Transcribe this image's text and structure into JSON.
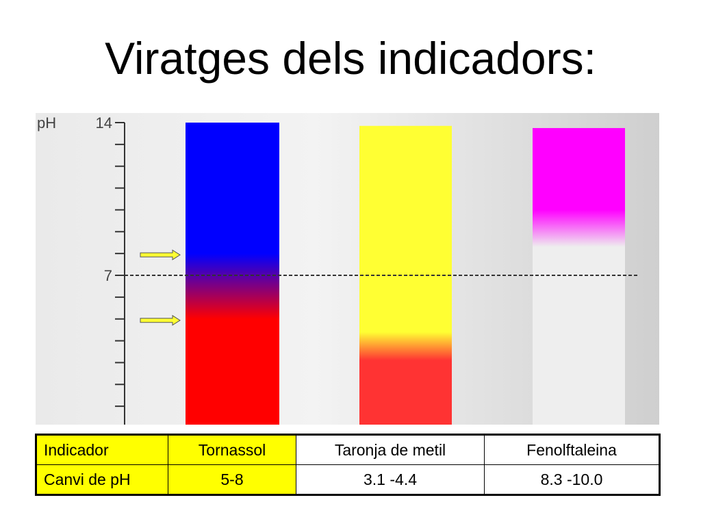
{
  "title": "Viratges dels indicadors:",
  "axis": {
    "label": "pH",
    "range": [
      0,
      14
    ],
    "tick_labels": [
      {
        "text": "14",
        "ph": 14
      },
      {
        "text": "7",
        "ph": 7
      }
    ],
    "reference_ph": 7
  },
  "indicators": [
    {
      "name": "Tornassol",
      "acid_color": "#ff0000",
      "base_color": "#0000ff",
      "transition": [
        5,
        8
      ]
    },
    {
      "name": "Taronja de metil",
      "acid_color": "#ff3333",
      "base_color": "#ffff33",
      "transition": [
        3.1,
        4.4
      ]
    },
    {
      "name": "Fenolftaleina",
      "acid_color": "#eeeeee",
      "base_color": "#ff00ff",
      "transition": [
        8.3,
        10.0
      ]
    }
  ],
  "arrow_color": "#ffff33",
  "table": {
    "rows": [
      [
        "Indicador",
        "Tornassol",
        "Taronja de metil",
        "Fenolftaleina"
      ],
      [
        "Canvi de pH",
        "5-8",
        "3.1 -4.4",
        "8.3 -10.0"
      ]
    ]
  }
}
